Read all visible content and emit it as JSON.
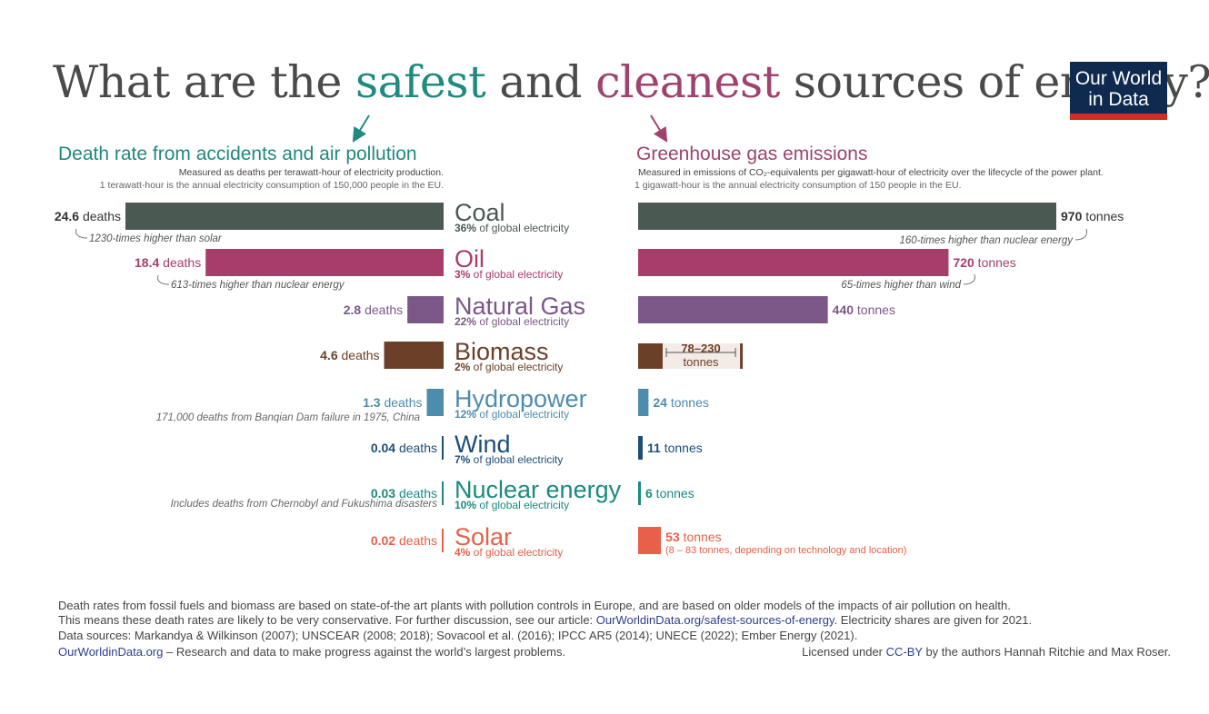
{
  "header": {
    "title_part1": "What are the ",
    "title_safe": "safest",
    "title_part2": " and ",
    "title_clean": "cleanest",
    "title_part3": " sources of energy?",
    "logo_line1": "Our World",
    "logo_line2": "in Data"
  },
  "left_panel": {
    "title": "Death rate from accidents and air pollution",
    "subtitle": "Measured as deaths per terawatt-hour of electricity production.",
    "note": "1 terawatt-hour is the annual electricity consumption of 150,000 people in the EU."
  },
  "right_panel": {
    "title": "Greenhouse gas emissions",
    "subtitle": "Measured in emissions of CO₂-equivalents per gigawatt-hour of electricity over the lifecycle of the power plant.",
    "note": "1 gigawatt-hour is the annual electricity consumption of 150 people in the EU."
  },
  "chart_data": [
    {
      "type": "bar",
      "orientation": "horizontal",
      "title": "Death rate from accidents and air pollution",
      "categories": [
        "Coal",
        "Oil",
        "Natural Gas",
        "Biomass",
        "Hydropower",
        "Wind",
        "Nuclear energy",
        "Solar"
      ],
      "values": [
        24.6,
        18.4,
        2.8,
        4.6,
        1.3,
        0.04,
        0.03,
        0.02
      ],
      "value_labels": [
        "24.6",
        "18.4",
        "2.8",
        "4.6",
        "1.3",
        "0.04",
        "0.03",
        "0.02"
      ],
      "unit_label": "deaths",
      "annotations": [
        {
          "category": "Coal",
          "text": "1230-times higher than solar"
        },
        {
          "category": "Oil",
          "text": "613-times higher than nuclear energy"
        },
        {
          "category": "Hydropower",
          "text": "171,000 deaths from Banqian Dam failure in 1975, China"
        },
        {
          "category": "Nuclear energy",
          "text": "Includes deaths from Chernobyl and Fukushima disasters"
        }
      ]
    },
    {
      "type": "bar",
      "orientation": "horizontal",
      "title": "Greenhouse gas emissions",
      "categories": [
        "Coal",
        "Oil",
        "Natural Gas",
        "Biomass",
        "Hydropower",
        "Wind",
        "Nuclear energy",
        "Solar"
      ],
      "values": [
        970,
        720,
        440,
        230,
        24,
        11,
        6,
        53
      ],
      "value_labels": [
        "970",
        "720",
        "440",
        "",
        "24",
        "11",
        "6",
        "53"
      ],
      "unit_label": "tonnes",
      "biomass_range": {
        "low": 78,
        "high": 230,
        "label": "78–230",
        "unit": "tonnes"
      },
      "annotations": [
        {
          "category": "Coal",
          "text": "160-times higher than nuclear energy"
        },
        {
          "category": "Oil",
          "text": "65-times higher than wind"
        },
        {
          "category": "Solar",
          "text": "(8 – 83 tonnes, depending on technology and location)"
        }
      ]
    }
  ],
  "sources": [
    {
      "name": "Coal",
      "share": "36%",
      "share_suffix": " of global electricity",
      "color": "#4a5a52"
    },
    {
      "name": "Oil",
      "share": "3%",
      "share_suffix": " of global electricity",
      "color": "#a73e6a"
    },
    {
      "name": "Natural Gas",
      "share": "22%",
      "share_suffix": " of global electricity",
      "color": "#7b5888"
    },
    {
      "name": "Biomass",
      "share": "2%",
      "share_suffix": " of global electricity",
      "color": "#6b3f28"
    },
    {
      "name": "Hydropower",
      "share": "12%",
      "share_suffix": " of global electricity",
      "color": "#4e8cad"
    },
    {
      "name": "Wind",
      "share": "7%",
      "share_suffix": " of global electricity",
      "color": "#1e4e78"
    },
    {
      "name": "Nuclear energy",
      "share": "10%",
      "share_suffix": " of global electricity",
      "color": "#1a8a7f"
    },
    {
      "name": "Solar",
      "share": "4%",
      "share_suffix": " of global electricity",
      "color": "#e8604a"
    }
  ],
  "footer": {
    "line1": "Death rates from fossil fuels and biomass are based on state-of-the art plants with pollution controls in Europe, and are based on older models of the impacts of air pollution on health.",
    "line2_pre": "This means these death rates are likely to be very conservative. For further discussion, see our article: ",
    "line2_link": "OurWorldinData.org/safest-sources-of-energy",
    "line2_post": ". Electricity shares are given for 2021.",
    "line3": "Data sources: Markandya & Wilkinson (2007); UNSCEAR (2008; 2018); Sovacool et al. (2016); IPCC AR5 (2014); UNECE (2022); Ember Energy (2021).",
    "line4_link": "OurWorldinData.org",
    "line4_post": " – Research and data to make progress against the world’s largest problems.",
    "license_pre": "Licensed under ",
    "license_link": "CC-BY",
    "license_post": " by the authors Hannah Ritchie and Max Roser."
  }
}
